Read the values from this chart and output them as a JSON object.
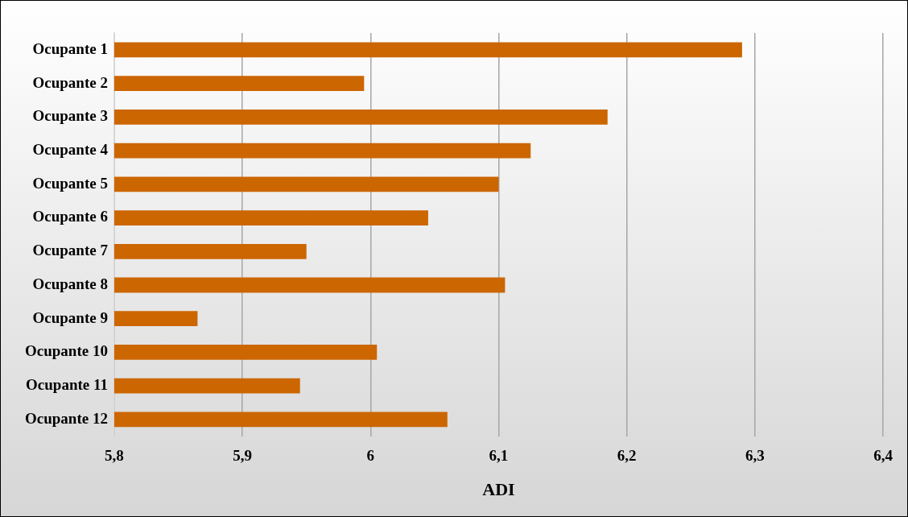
{
  "chart_data": {
    "type": "bar",
    "orientation": "horizontal",
    "xlabel": "ADI",
    "categories": [
      "Ocupante 1",
      "Ocupante 2",
      "Ocupante 3",
      "Ocupante 4",
      "Ocupante 5",
      "Ocupante 6",
      "Ocupante 7",
      "Ocupante 8",
      "Ocupante 9",
      "Ocupante 10",
      "Ocupante 11",
      "Ocupante 12"
    ],
    "values": [
      6.29,
      5.995,
      6.185,
      6.125,
      6.1,
      6.045,
      5.95,
      6.105,
      5.865,
      6.005,
      5.945,
      6.06
    ],
    "color": "#cc6600",
    "xlim": [
      5.8,
      6.4
    ],
    "xticks": [
      {
        "value": 5.8,
        "label": "5,8"
      },
      {
        "value": 5.9,
        "label": "5,9"
      },
      {
        "value": 6,
        "label": "6"
      },
      {
        "value": 6.1,
        "label": "6,1"
      },
      {
        "value": 6.2,
        "label": "6,2"
      },
      {
        "value": 6.3,
        "label": "6,3"
      },
      {
        "value": 6.4,
        "label": "6,4"
      }
    ],
    "grid": "x",
    "legend": false
  }
}
